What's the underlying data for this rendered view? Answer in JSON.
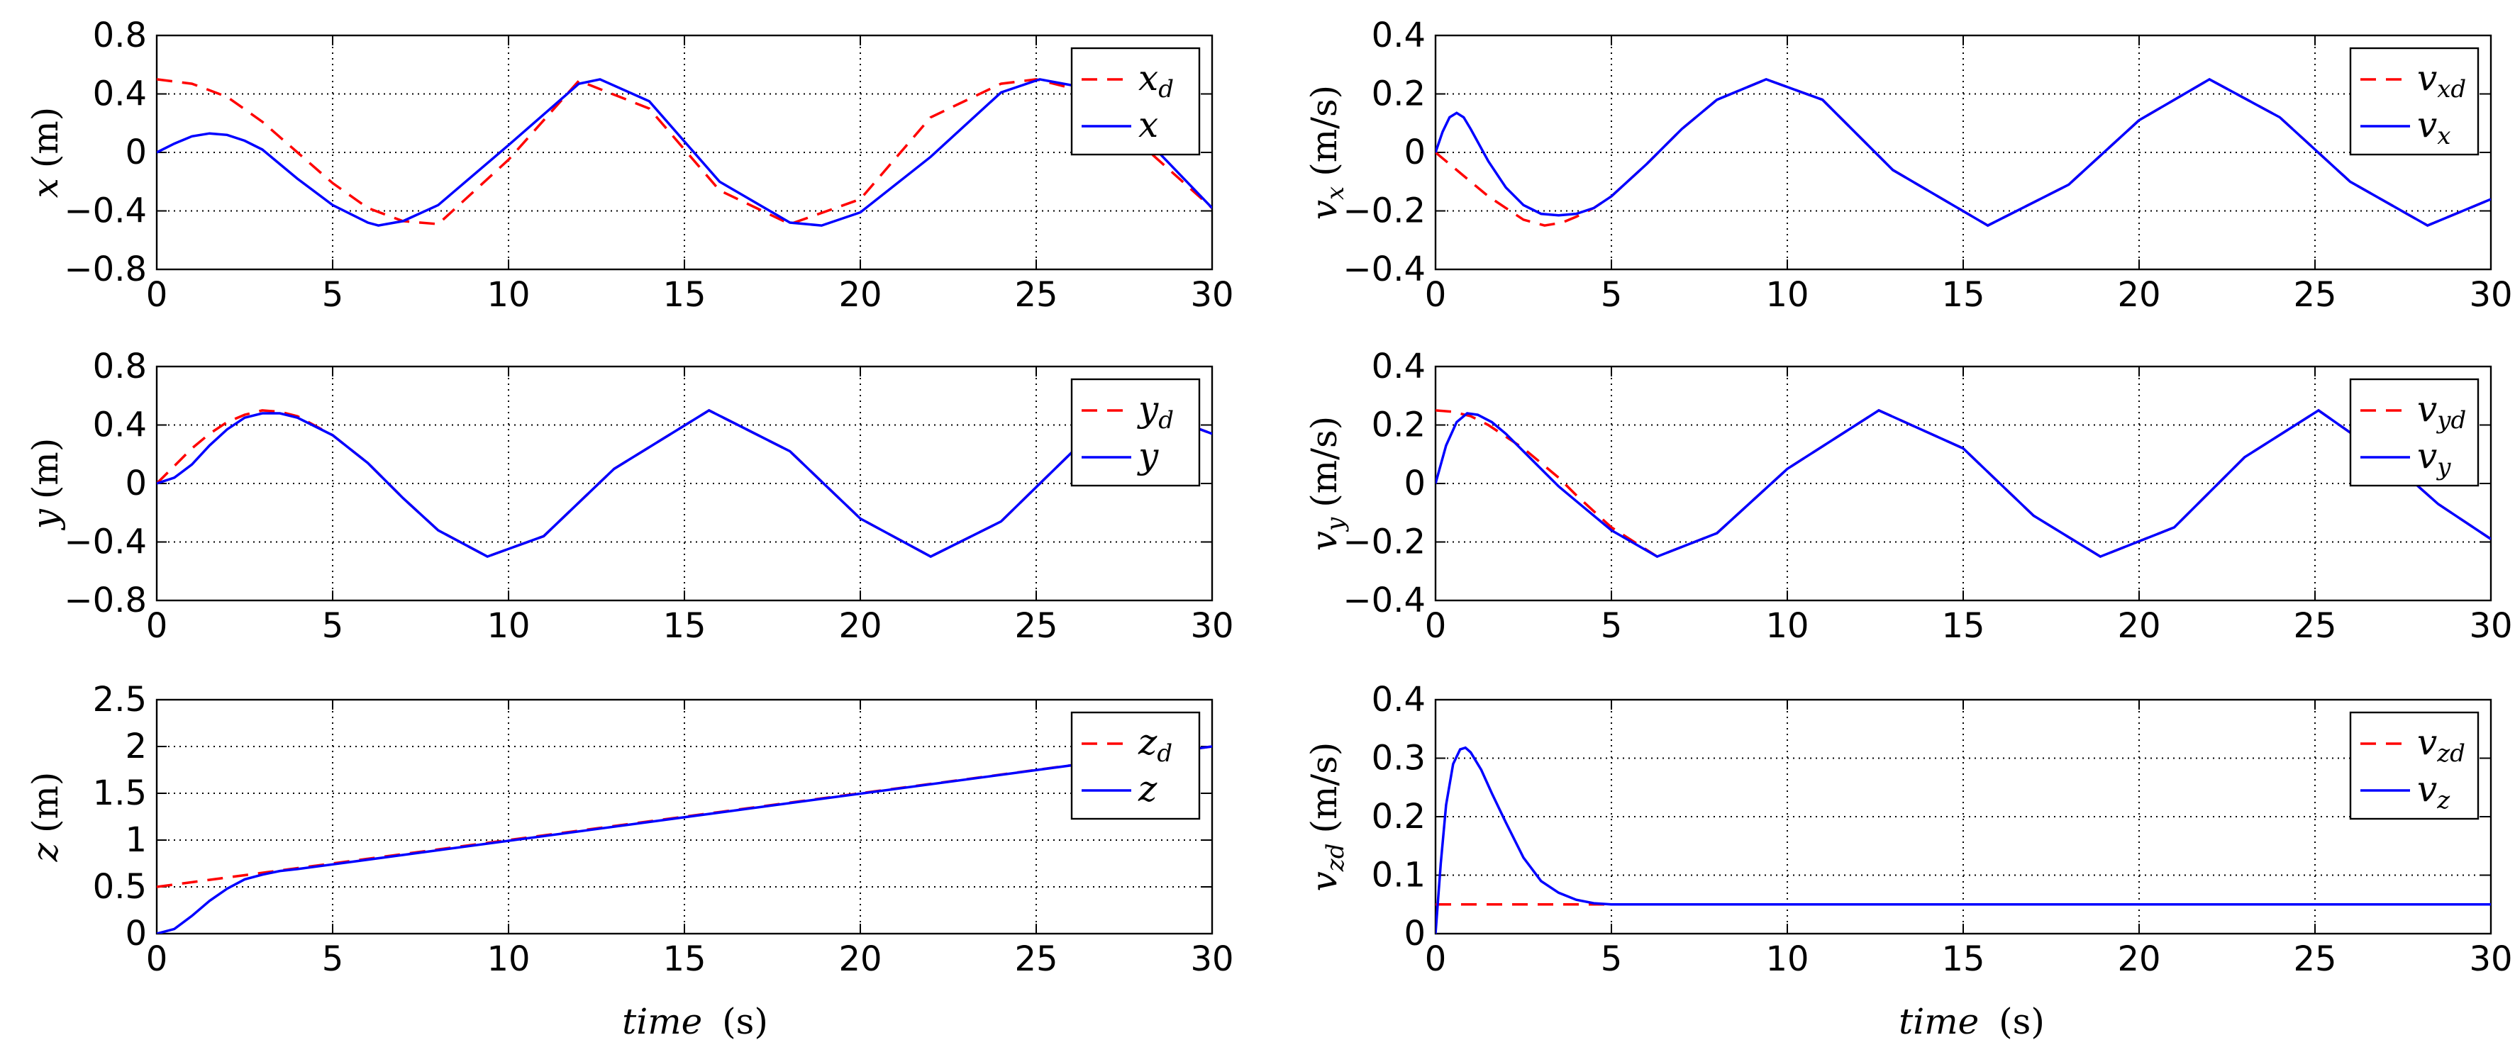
{
  "figure": {
    "common_xlabel_word": "time",
    "common_xlabel_unit": "(s)"
  },
  "chart_data": [
    {
      "id": "x",
      "type": "line",
      "ylabel_var": "x",
      "ylabel_sub": "",
      "ylabel_unit": "(m)",
      "xlim": [
        0,
        30
      ],
      "ylim": [
        -0.8,
        0.8
      ],
      "xticks": [
        "0",
        "5",
        "10",
        "15",
        "20",
        "25",
        "30"
      ],
      "yticks": [
        "−0.8",
        "−0.4",
        "0",
        "0.4",
        "0.8"
      ],
      "ytick_values": [
        -0.8,
        -0.4,
        0,
        0.4,
        0.8
      ],
      "grid": true,
      "legend": "top-right",
      "series": [
        {
          "name": "x_d",
          "legend_var": "x",
          "legend_sub": "d",
          "style": "dashed-red",
          "x": [
            0,
            1,
            2,
            3,
            4,
            5,
            6,
            7,
            8,
            10,
            12,
            14,
            16,
            18,
            20,
            22,
            24,
            25,
            26,
            28,
            30
          ],
          "y": [
            0.5,
            0.47,
            0.38,
            0.21,
            0.0,
            -0.21,
            -0.38,
            -0.47,
            -0.49,
            -0.05,
            0.49,
            0.3,
            -0.26,
            -0.49,
            -0.32,
            0.24,
            0.47,
            0.5,
            0.44,
            0.05,
            -0.38
          ]
        },
        {
          "name": "x",
          "legend_var": "x",
          "legend_sub": "",
          "style": "solid-blue",
          "x": [
            0,
            0.5,
            1,
            1.5,
            2,
            2.5,
            3,
            4,
            5,
            6,
            6.3,
            7,
            8,
            10,
            12,
            12.6,
            14,
            16,
            18,
            18.9,
            20,
            22,
            24,
            25.1,
            26,
            28,
            30
          ],
          "y": [
            0.0,
            0.06,
            0.11,
            0.13,
            0.12,
            0.08,
            0.02,
            -0.18,
            -0.36,
            -0.48,
            -0.5,
            -0.47,
            -0.36,
            0.05,
            0.47,
            0.5,
            0.35,
            -0.2,
            -0.48,
            -0.5,
            -0.41,
            -0.03,
            0.41,
            0.5,
            0.46,
            0.12,
            -0.38
          ]
        }
      ]
    },
    {
      "id": "y",
      "type": "line",
      "ylabel_var": "y",
      "ylabel_sub": "",
      "ylabel_unit": "(m)",
      "xlim": [
        0,
        30
      ],
      "ylim": [
        -0.8,
        0.8
      ],
      "xticks": [
        "0",
        "5",
        "10",
        "15",
        "20",
        "25",
        "30"
      ],
      "yticks": [
        "−0.8",
        "−0.4",
        "0",
        "0.4",
        "0.8"
      ],
      "ytick_values": [
        -0.8,
        -0.4,
        0,
        0.4,
        0.8
      ],
      "grid": true,
      "legend": "top-right",
      "series": [
        {
          "name": "y_d",
          "legend_var": "y",
          "legend_sub": "d",
          "style": "dashed-red",
          "x": [
            0,
            0.5,
            1,
            1.5,
            2,
            2.5,
            3,
            3.5,
            4,
            5,
            6,
            7,
            8,
            9.4,
            11,
            13,
            15.7,
            18,
            20,
            22,
            24,
            26,
            28,
            29,
            30
          ],
          "y": [
            0.0,
            0.12,
            0.24,
            0.34,
            0.42,
            0.47,
            0.5,
            0.49,
            0.46,
            0.33,
            0.14,
            -0.1,
            -0.32,
            -0.5,
            -0.36,
            0.1,
            0.5,
            0.22,
            -0.24,
            -0.5,
            -0.26,
            0.21,
            0.47,
            0.43,
            0.34
          ]
        },
        {
          "name": "y",
          "legend_var": "y",
          "legend_sub": "",
          "style": "solid-blue",
          "x": [
            0,
            0.5,
            1,
            1.5,
            2,
            2.5,
            3,
            3.5,
            4,
            5,
            6,
            7,
            8,
            9.4,
            11,
            13,
            15.7,
            18,
            20,
            22,
            24,
            26,
            28,
            29,
            30
          ],
          "y": [
            0.0,
            0.04,
            0.13,
            0.26,
            0.37,
            0.45,
            0.48,
            0.48,
            0.45,
            0.33,
            0.14,
            -0.1,
            -0.32,
            -0.5,
            -0.36,
            0.1,
            0.5,
            0.22,
            -0.24,
            -0.5,
            -0.26,
            0.21,
            0.47,
            0.43,
            0.34
          ]
        }
      ]
    },
    {
      "id": "z",
      "type": "line",
      "ylabel_var": "z",
      "ylabel_sub": "",
      "ylabel_unit": "(m)",
      "xlim": [
        0,
        30
      ],
      "ylim": [
        0,
        2.5
      ],
      "xticks": [
        "0",
        "5",
        "10",
        "15",
        "20",
        "25",
        "30"
      ],
      "yticks": [
        "0",
        "0.5",
        "1",
        "1.5",
        "2",
        "2.5"
      ],
      "ytick_values": [
        0,
        0.5,
        1,
        1.5,
        2,
        2.5
      ],
      "grid": true,
      "legend": "top-right",
      "series": [
        {
          "name": "z_d",
          "legend_var": "z",
          "legend_sub": "d",
          "style": "dashed-red",
          "x": [
            0,
            30
          ],
          "y": [
            0.5,
            2.0
          ]
        },
        {
          "name": "z",
          "legend_var": "z",
          "legend_sub": "",
          "style": "solid-blue",
          "x": [
            0,
            0.5,
            1,
            1.5,
            2,
            2.5,
            3,
            3.5,
            4,
            5,
            30
          ],
          "y": [
            0.0,
            0.05,
            0.19,
            0.35,
            0.48,
            0.58,
            0.63,
            0.67,
            0.69,
            0.74,
            2.0
          ]
        }
      ]
    },
    {
      "id": "vx",
      "type": "line",
      "ylabel_var": "v",
      "ylabel_sub": "x",
      "ylabel_unit": "(m/s)",
      "xlim": [
        0,
        30
      ],
      "ylim": [
        -0.4,
        0.4
      ],
      "xticks": [
        "0",
        "5",
        "10",
        "15",
        "20",
        "25",
        "30"
      ],
      "yticks": [
        "−0.4",
        "−0.2",
        "0",
        "0.2",
        "0.4"
      ],
      "ytick_values": [
        -0.4,
        -0.2,
        0,
        0.2,
        0.4
      ],
      "grid": true,
      "legend": "top-right",
      "series": [
        {
          "name": "v_xd",
          "legend_var": "v",
          "legend_sub": "xd",
          "style": "dashed-red",
          "x": [
            0,
            0.5,
            1,
            1.5,
            2,
            2.5,
            3.1,
            3.6,
            4,
            4.5,
            5,
            6,
            7,
            8,
            9.4,
            11,
            13,
            15.7,
            18,
            20,
            22,
            24,
            26,
            28.2,
            30
          ],
          "y": [
            0.0,
            -0.05,
            -0.1,
            -0.15,
            -0.19,
            -0.23,
            -0.25,
            -0.24,
            -0.22,
            -0.19,
            -0.15,
            -0.04,
            0.08,
            0.18,
            0.25,
            0.18,
            -0.06,
            -0.25,
            -0.11,
            0.11,
            0.25,
            0.12,
            -0.1,
            -0.25,
            -0.16
          ]
        },
        {
          "name": "v_x",
          "legend_var": "v",
          "legend_sub": "x",
          "style": "solid-blue",
          "x": [
            0,
            0.2,
            0.4,
            0.6,
            0.8,
            1.0,
            1.5,
            2,
            2.5,
            3,
            3.5,
            4,
            4.5,
            5,
            6,
            7,
            8,
            9.4,
            11,
            13,
            15.7,
            18,
            20,
            22,
            24,
            26,
            28.2,
            30
          ],
          "y": [
            0.0,
            0.07,
            0.12,
            0.135,
            0.12,
            0.08,
            -0.03,
            -0.12,
            -0.18,
            -0.21,
            -0.215,
            -0.21,
            -0.19,
            -0.15,
            -0.04,
            0.08,
            0.18,
            0.25,
            0.18,
            -0.06,
            -0.25,
            -0.11,
            0.11,
            0.25,
            0.12,
            -0.1,
            -0.25,
            -0.16
          ]
        }
      ]
    },
    {
      "id": "vy",
      "type": "line",
      "ylabel_var": "v",
      "ylabel_sub": "y",
      "ylabel_unit": "(m/s)",
      "xlim": [
        0,
        30
      ],
      "ylim": [
        -0.4,
        0.4
      ],
      "xticks": [
        "0",
        "5",
        "10",
        "15",
        "20",
        "25",
        "30"
      ],
      "yticks": [
        "−0.4",
        "−0.2",
        "0",
        "0.2",
        "0.4"
      ],
      "ytick_values": [
        -0.4,
        -0.2,
        0,
        0.2,
        0.4
      ],
      "grid": true,
      "legend": "top-right",
      "series": [
        {
          "name": "v_yd",
          "legend_var": "v",
          "legend_sub": "yd",
          "style": "dashed-red",
          "x": [
            0,
            0.5,
            1,
            1.5,
            2,
            2.5,
            3,
            3.5,
            4,
            5,
            6.3,
            8,
            10,
            12.6,
            15,
            17,
            18.9,
            21,
            23,
            25.1,
            27,
            28.5,
            30
          ],
          "y": [
            0.25,
            0.245,
            0.23,
            0.2,
            0.16,
            0.12,
            0.07,
            0.02,
            -0.04,
            -0.15,
            -0.25,
            -0.17,
            0.05,
            0.25,
            0.12,
            -0.11,
            -0.25,
            -0.15,
            0.09,
            0.25,
            0.09,
            -0.07,
            -0.19
          ]
        },
        {
          "name": "v_y",
          "legend_var": "v",
          "legend_sub": "y",
          "style": "solid-blue",
          "x": [
            0,
            0.3,
            0.6,
            0.9,
            1.2,
            1.6,
            2,
            2.5,
            3,
            3.5,
            4,
            5,
            6.3,
            8,
            10,
            12.6,
            15,
            17,
            18.9,
            21,
            23,
            25.1,
            27,
            28.5,
            30
          ],
          "y": [
            0.0,
            0.13,
            0.21,
            0.24,
            0.235,
            0.21,
            0.17,
            0.11,
            0.05,
            -0.01,
            -0.06,
            -0.16,
            -0.25,
            -0.17,
            0.05,
            0.25,
            0.12,
            -0.11,
            -0.25,
            -0.15,
            0.09,
            0.25,
            0.09,
            -0.07,
            -0.19
          ]
        }
      ]
    },
    {
      "id": "vz",
      "type": "line",
      "ylabel_var": "v",
      "ylabel_sub": "zd",
      "ylabel_unit": "(m/s)",
      "xlim": [
        0,
        30
      ],
      "ylim": [
        0,
        0.4
      ],
      "xticks": [
        "0",
        "5",
        "10",
        "15",
        "20",
        "25",
        "30"
      ],
      "yticks": [
        "0",
        "0.1",
        "0.2",
        "0.3",
        "0.4"
      ],
      "ytick_values": [
        0,
        0.1,
        0.2,
        0.3,
        0.4
      ],
      "grid": true,
      "legend": "top-right",
      "series": [
        {
          "name": "v_zd",
          "legend_var": "v",
          "legend_sub": "zd",
          "style": "dashed-red",
          "x": [
            0,
            5,
            30
          ],
          "y": [
            0.05,
            0.05,
            0.05
          ]
        },
        {
          "name": "v_z",
          "legend_var": "v",
          "legend_sub": "z",
          "style": "solid-blue",
          "x": [
            0,
            0.15,
            0.3,
            0.5,
            0.7,
            0.85,
            1.0,
            1.3,
            1.6,
            2,
            2.5,
            3,
            3.5,
            4,
            4.5,
            5,
            10,
            15,
            20,
            25,
            30
          ],
          "y": [
            0.0,
            0.12,
            0.22,
            0.29,
            0.315,
            0.318,
            0.31,
            0.28,
            0.24,
            0.19,
            0.13,
            0.09,
            0.07,
            0.058,
            0.052,
            0.05,
            0.05,
            0.05,
            0.05,
            0.05,
            0.05
          ]
        }
      ]
    }
  ]
}
